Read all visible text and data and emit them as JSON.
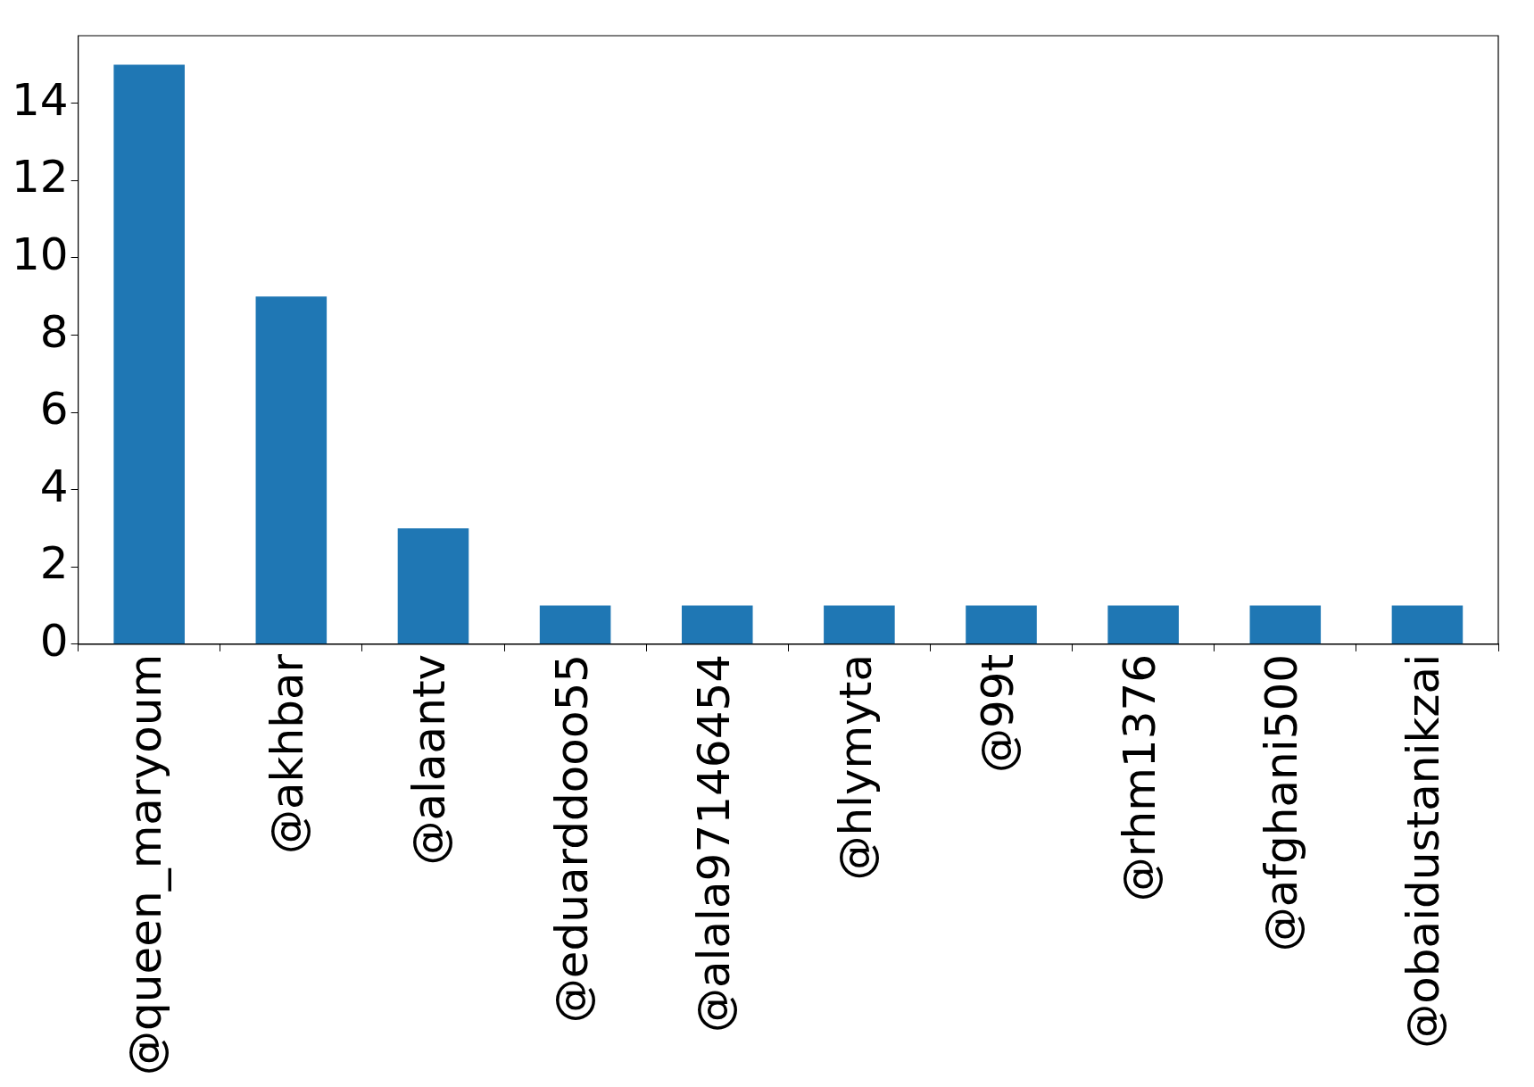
{
  "chart_data": {
    "type": "bar",
    "categories": [
      "@queen_maryoum",
      "@akhbar",
      "@alaantv",
      "@eduarddooo55",
      "@alala97146454",
      "@hlymyta",
      "@99t",
      "@rhm1376",
      "@afghani500",
      "@obaidustanikzai"
    ],
    "values": [
      15,
      9,
      3,
      1,
      1,
      1,
      1,
      1,
      1,
      1
    ],
    "color": "#1f77b4",
    "ylim": [
      0,
      15.75
    ],
    "yticks": [
      0,
      2,
      4,
      6,
      8,
      10,
      12,
      14
    ],
    "grid": false,
    "legend": false
  }
}
